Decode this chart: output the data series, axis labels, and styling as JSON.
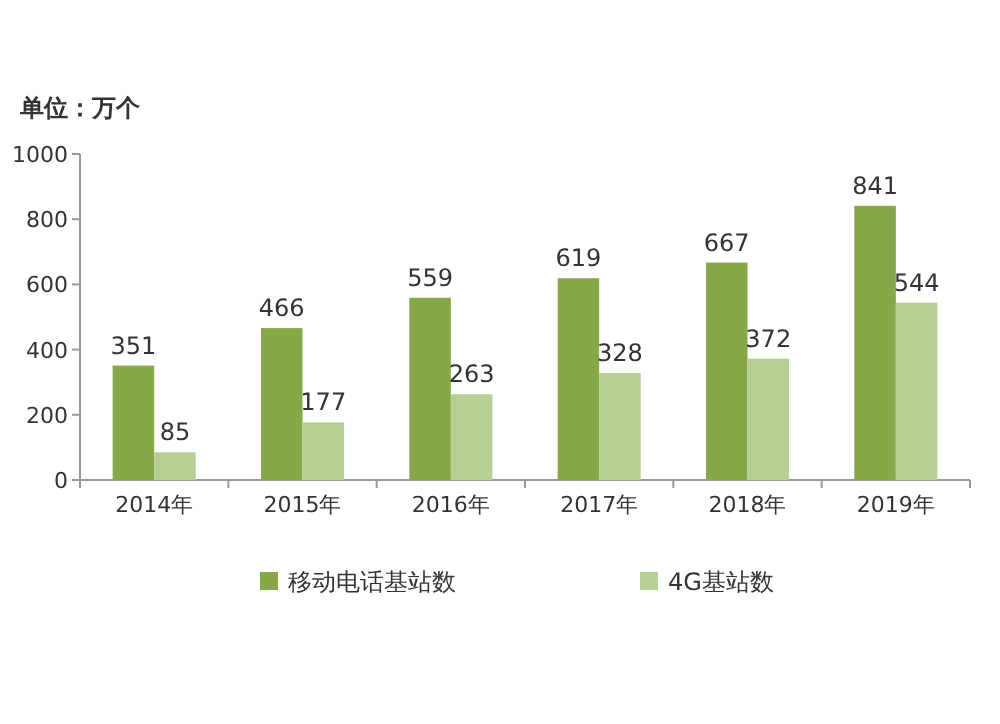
{
  "chart_data": {
    "type": "bar",
    "ylabel": "单位：万个",
    "categories": [
      "2014年",
      "2015年",
      "2016年",
      "2017年",
      "2018年",
      "2019年"
    ],
    "series": [
      {
        "name": "移动电话基站数",
        "color": "#86a849",
        "values": [
          351,
          466,
          559,
          619,
          667,
          841
        ]
      },
      {
        "name": "4G基站数",
        "color": "#b5cf95",
        "values": [
          85,
          177,
          263,
          328,
          372,
          544
        ]
      }
    ],
    "ylim": [
      0,
      1000
    ],
    "yticks": [
      0,
      200,
      400,
      600,
      800,
      1000
    ],
    "data_labels": true,
    "legend": "bottom",
    "grid": false
  }
}
